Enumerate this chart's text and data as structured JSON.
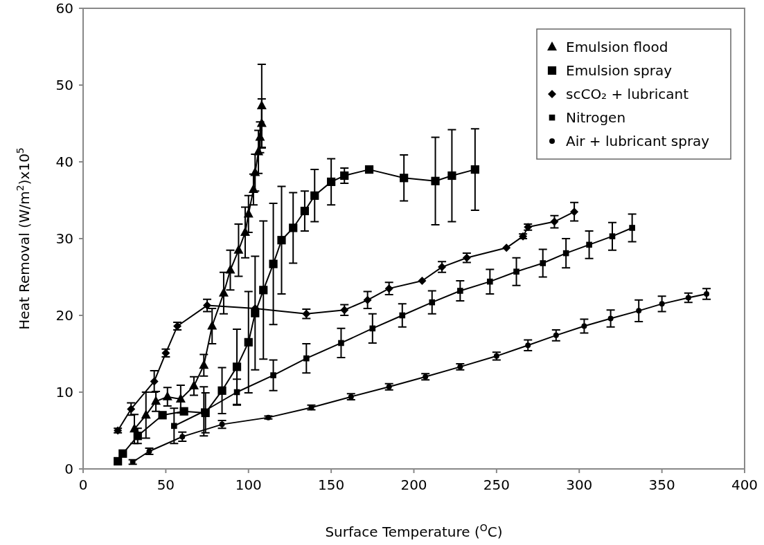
{
  "chart_data": {
    "type": "line",
    "xlabel": "Surface Temperature ($^{O}$C)",
    "ylabel": "Heat Removal (W/m$^{2}$)x10$^{5}$",
    "xlim": [
      0,
      400
    ],
    "ylim": [
      0,
      60
    ],
    "xticks": [
      0,
      50,
      100,
      150,
      200,
      250,
      300,
      350,
      400
    ],
    "yticks": [
      0,
      10,
      20,
      30,
      40,
      50,
      60
    ],
    "grid": false,
    "legend": "top right",
    "line_style": "solid",
    "series": [
      {
        "name": "Emulsion flood",
        "color": "#000000",
        "marker": "triangle",
        "x": [
          31,
          38,
          44,
          51,
          59,
          67,
          73,
          78,
          85,
          89,
          94,
          98,
          100,
          103,
          104,
          106,
          107,
          108,
          108
        ],
        "values": [
          5.2,
          7.0,
          8.8,
          9.4,
          9.1,
          10.8,
          13.5,
          18.6,
          22.9,
          25.9,
          28.5,
          30.8,
          33.2,
          36.4,
          38.6,
          41.3,
          43.2,
          45.0,
          47.3
        ],
        "errors": [
          1.9,
          3.0,
          1.3,
          1.2,
          1.8,
          1.2,
          1.4,
          2.3,
          2.7,
          2.6,
          3.4,
          3.3,
          2.4,
          2.0,
          2.4,
          2.8,
          2.0,
          3.2,
          5.4
        ]
      },
      {
        "name": "Emulsion spray",
        "color": "#000000",
        "marker": "square",
        "x": [
          21,
          24,
          33,
          48,
          61,
          74,
          84,
          93,
          100,
          104,
          109,
          115,
          120,
          127,
          134,
          140,
          150,
          158,
          173,
          194,
          213,
          223,
          237
        ],
        "values": [
          1.0,
          2.0,
          4.3,
          7.0,
          7.5,
          7.3,
          10.2,
          13.3,
          16.5,
          20.3,
          23.3,
          26.7,
          29.8,
          31.4,
          33.6,
          35.6,
          37.4,
          38.2,
          39.0,
          37.9,
          37.5,
          38.2,
          39.0
        ],
        "errors": [
          0,
          0,
          1.0,
          0,
          0,
          2.6,
          3.0,
          4.9,
          6.6,
          7.4,
          9.0,
          7.9,
          7.0,
          4.6,
          2.6,
          3.4,
          3.0,
          1.0,
          0.3,
          3.0,
          5.7,
          6.0,
          5.3
        ]
      },
      {
        "name": "scCO₂ + lubricant",
        "color": "#000000",
        "marker": "diamond",
        "x": [
          21,
          29,
          43,
          50,
          57,
          75,
          104,
          135,
          158,
          172,
          185,
          205,
          217,
          232,
          256,
          266,
          269,
          285,
          297
        ],
        "values": [
          5.0,
          7.8,
          11.4,
          15.1,
          18.6,
          21.3,
          20.9,
          20.2,
          20.7,
          22.0,
          23.5,
          24.5,
          26.3,
          27.5,
          28.8,
          30.3,
          31.5,
          32.2,
          33.5
        ],
        "errors": [
          0.3,
          0.8,
          1.4,
          0.5,
          0.5,
          0.8,
          0,
          0.6,
          0.7,
          1.1,
          0.8,
          0,
          0.7,
          0.6,
          0,
          0.3,
          0.4,
          0.8,
          1.2
        ]
      },
      {
        "name": "Nitrogen",
        "color": "#000000",
        "marker": "square",
        "x": [
          55,
          73,
          93,
          115,
          135,
          156,
          175,
          193,
          211,
          228,
          246,
          262,
          278,
          292,
          306,
          320,
          332
        ],
        "values": [
          5.6,
          7.5,
          10.0,
          12.2,
          14.4,
          16.4,
          18.3,
          20.0,
          21.7,
          23.2,
          24.4,
          25.7,
          26.8,
          28.1,
          29.2,
          30.3,
          31.4
        ],
        "errors": [
          2.3,
          3.2,
          1.7,
          2.0,
          1.9,
          1.9,
          1.9,
          1.5,
          1.5,
          1.3,
          1.6,
          1.8,
          1.8,
          1.9,
          1.8,
          1.8,
          1.8
        ]
      },
      {
        "name": "Air + lubricant spray",
        "color": "#000000",
        "marker": "circle",
        "x": [
          30,
          40,
          60,
          84,
          112,
          138,
          162,
          185,
          207,
          228,
          250,
          269,
          286,
          303,
          319,
          336,
          350,
          366,
          377
        ],
        "values": [
          0.9,
          2.3,
          4.2,
          5.8,
          6.7,
          8.0,
          9.4,
          10.7,
          12.0,
          13.3,
          14.7,
          16.1,
          17.4,
          18.6,
          19.6,
          20.6,
          21.5,
          22.3,
          22.8
        ],
        "errors": [
          0.3,
          0.4,
          0.6,
          0.5,
          0.2,
          0.3,
          0.4,
          0.4,
          0.4,
          0.4,
          0.5,
          0.7,
          0.7,
          0.9,
          1.1,
          1.4,
          1.0,
          0.6,
          0.7
        ]
      }
    ]
  }
}
